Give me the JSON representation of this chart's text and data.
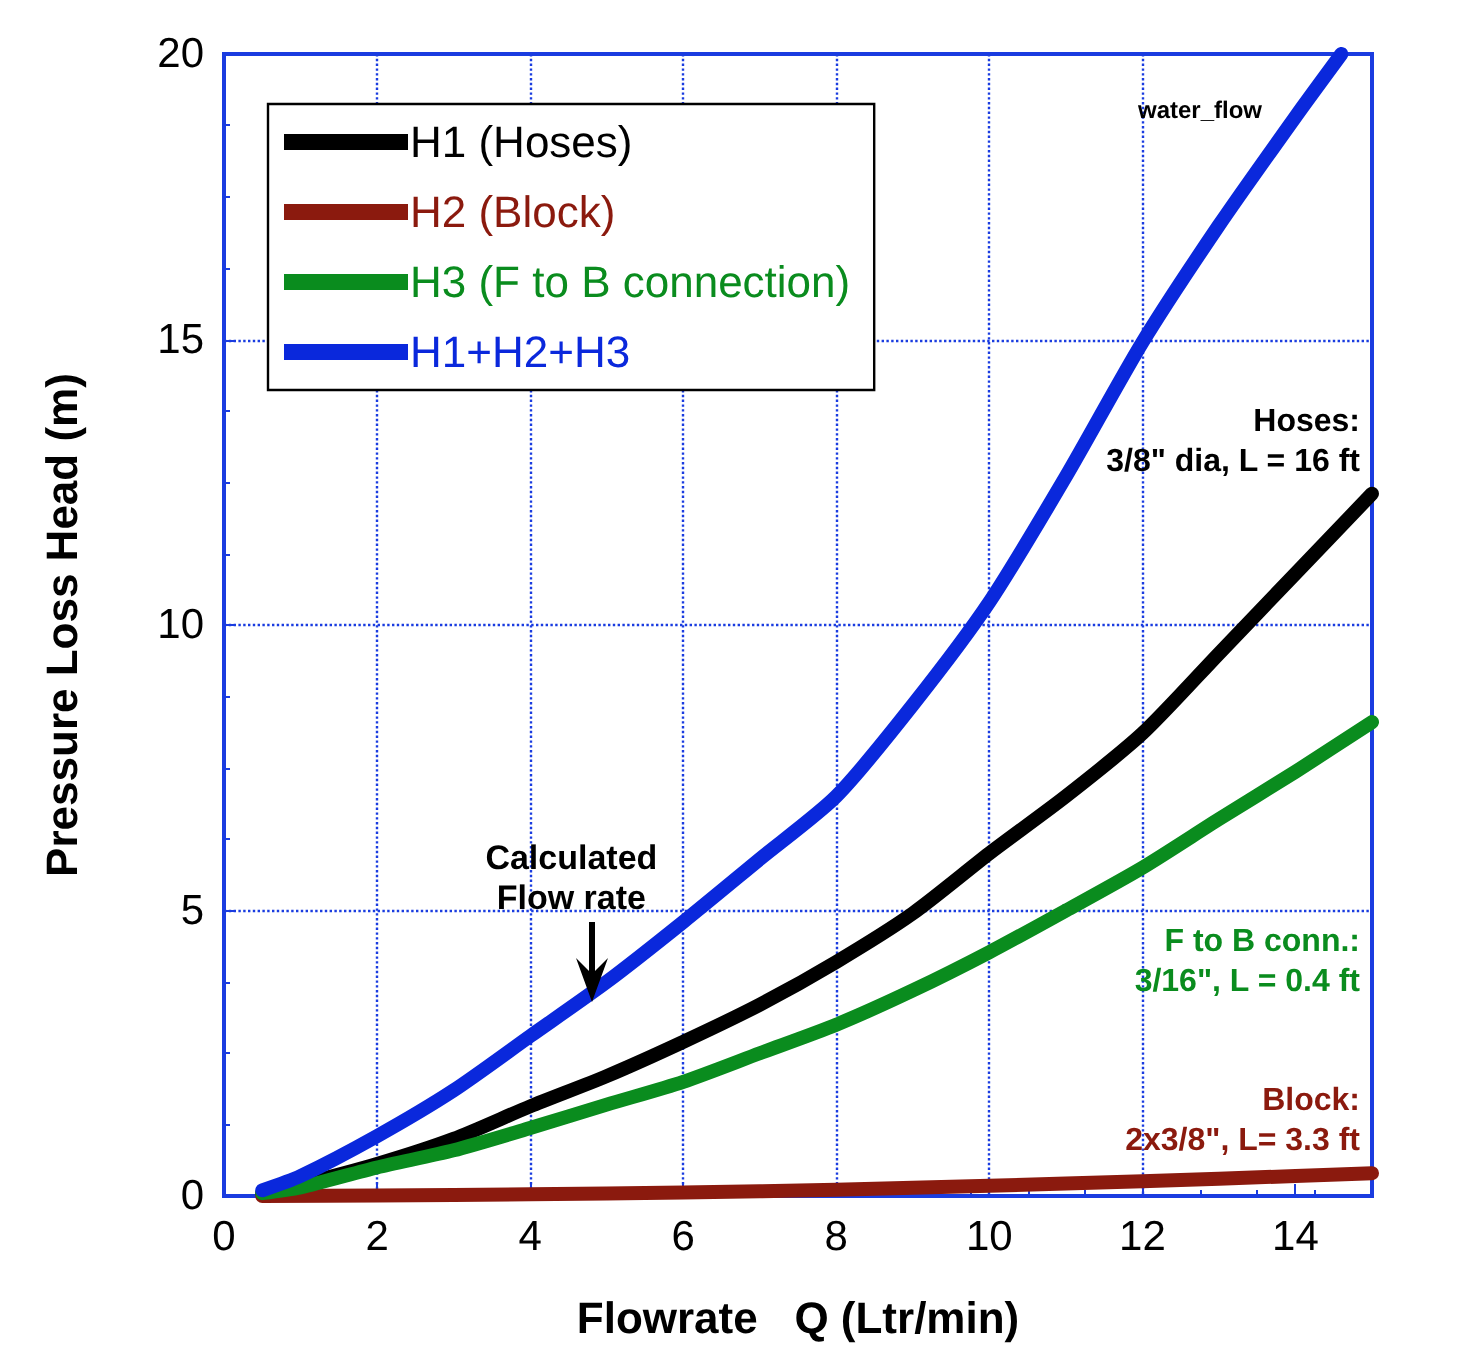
{
  "chart_data": {
    "type": "line",
    "xlabel": "Flowrate   Q (Ltr/min)",
    "ylabel": "Pressure Loss Head (m)",
    "xlim": [
      0,
      15
    ],
    "ylim": [
      0,
      20
    ],
    "xticks": [
      0,
      2,
      4,
      6,
      8,
      10,
      12,
      14
    ],
    "yticks": [
      0,
      5,
      10,
      15,
      20
    ],
    "grid": true,
    "legend": "top left",
    "marker": "none",
    "line_style": "solid",
    "series": [
      {
        "name": "H1 (Hoses)",
        "color": "#000000",
        "x": [
          0.5,
          1,
          2,
          3,
          4,
          5,
          6,
          7,
          8,
          9,
          10,
          11,
          12,
          13,
          14,
          15
        ],
        "values": [
          0.05,
          0.2,
          0.56,
          1.0,
          1.57,
          2.1,
          2.7,
          3.35,
          4.1,
          4.95,
          6.0,
          7.0,
          8.1,
          9.5,
          10.9,
          12.3
        ]
      },
      {
        "name": "H2 (Block)",
        "color": "#8b1a0e",
        "x": [
          0.5,
          2,
          4,
          6,
          8,
          10,
          12,
          14,
          15
        ],
        "values": [
          0,
          0.01,
          0.03,
          0.06,
          0.11,
          0.18,
          0.26,
          0.35,
          0.4
        ]
      },
      {
        "name": "H3 (F to B connection)",
        "color": "#0a8c1e",
        "x": [
          0.5,
          1,
          2,
          3,
          4,
          5,
          6,
          7,
          8,
          9,
          10,
          11,
          12,
          13,
          14,
          15
        ],
        "values": [
          0.05,
          0.15,
          0.5,
          0.8,
          1.19,
          1.6,
          2.0,
          2.5,
          3.0,
          3.6,
          4.27,
          5.0,
          5.75,
          6.6,
          7.43,
          8.3
        ]
      },
      {
        "name": "H1+H2+H3",
        "color": "#0a28dc",
        "x": [
          0.5,
          1,
          2,
          3,
          4,
          5,
          6,
          7,
          8,
          9,
          10,
          11,
          12,
          13,
          14,
          14.6
        ],
        "values": [
          0.1,
          0.35,
          1.05,
          1.85,
          2.8,
          3.75,
          4.8,
          5.9,
          7.0,
          8.6,
          10.4,
          12.6,
          14.95,
          17,
          18.9,
          20
        ]
      }
    ],
    "annotations": [
      "water_flow",
      "Hoses:\n3/8\" dia, L = 16 ft",
      "Block:\n2x3/8\", L= 3.3 ft",
      "F to B conn.:\n3/16\", L = 0.4 ft",
      {
        "text": "Calculated\nFlow rate",
        "x": 4.8,
        "y": 3.4
      }
    ]
  }
}
